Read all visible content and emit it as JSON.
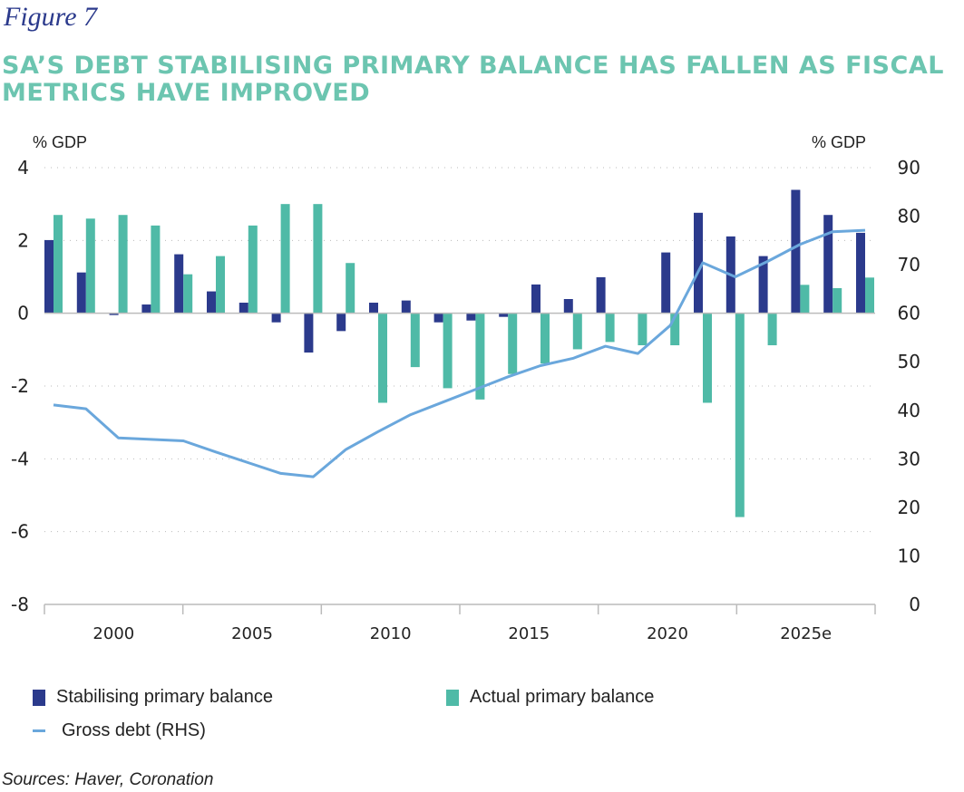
{
  "figure_label": "Figure 7",
  "title": "SA’S DEBT STABILISING PRIMARY BALANCE HAS FALLEN AS FISCAL METRICS HAVE IMPROVED",
  "source": "Sources: Haver, Coronation",
  "colors": {
    "stabilising": "#2b3a8c",
    "actual": "#4fbaa7",
    "debt": "#6aa7dc",
    "title": "#6cc5b0",
    "figure_label": "#2b3a8c"
  },
  "chart_data": {
    "type": "bar+line",
    "ylabel_left": "% GDP",
    "ylabel_right": "% GDP",
    "ylim_left": [
      -8,
      4
    ],
    "yticks_left": [
      4,
      2,
      0,
      -2,
      -4,
      -6,
      -8
    ],
    "ylim_right": [
      0,
      90
    ],
    "yticks_right": [
      90,
      80,
      70,
      60,
      50,
      40,
      30,
      20,
      10,
      0
    ],
    "x_tick_labels": [
      "2000",
      "2005",
      "2010",
      "2015",
      "2020",
      "2025e"
    ],
    "grid": "horizontal dotted",
    "legend_position": "bottom",
    "series": [
      {
        "name": "Stabilising primary balance",
        "type": "bar",
        "axis": "left",
        "values": [
          2.01,
          1.12,
          -0.05,
          0.24,
          1.62,
          0.6,
          0.29,
          -0.25,
          -1.08,
          -0.49,
          0.29,
          0.35,
          -0.25,
          -0.2,
          -0.1,
          0.79,
          0.39,
          0.99,
          0.0,
          1.67,
          2.76,
          2.11,
          1.57,
          3.39,
          2.7,
          2.21
        ]
      },
      {
        "name": "Actual primary balance",
        "type": "bar",
        "axis": "left",
        "values": [
          2.7,
          2.6,
          2.7,
          2.41,
          1.07,
          1.57,
          2.41,
          3.0,
          3.0,
          1.38,
          -2.46,
          -1.48,
          -2.06,
          -2.37,
          -1.67,
          -1.38,
          -0.99,
          -0.79,
          -0.88,
          -0.88,
          -2.46,
          -5.6,
          -0.88,
          0.78,
          0.69,
          0.98
        ]
      },
      {
        "name": "Gross debt (RHS)",
        "type": "line",
        "axis": "right",
        "values": [
          41.1,
          40.3,
          34.3,
          34.0,
          33.7,
          31.4,
          29.2,
          27.0,
          26.3,
          31.9,
          35.6,
          39.1,
          41.7,
          44.3,
          46.9,
          49.2,
          50.7,
          53.2,
          51.7,
          57.5,
          70.4,
          67.5,
          70.7,
          74.2,
          76.8,
          77.1
        ]
      }
    ]
  }
}
